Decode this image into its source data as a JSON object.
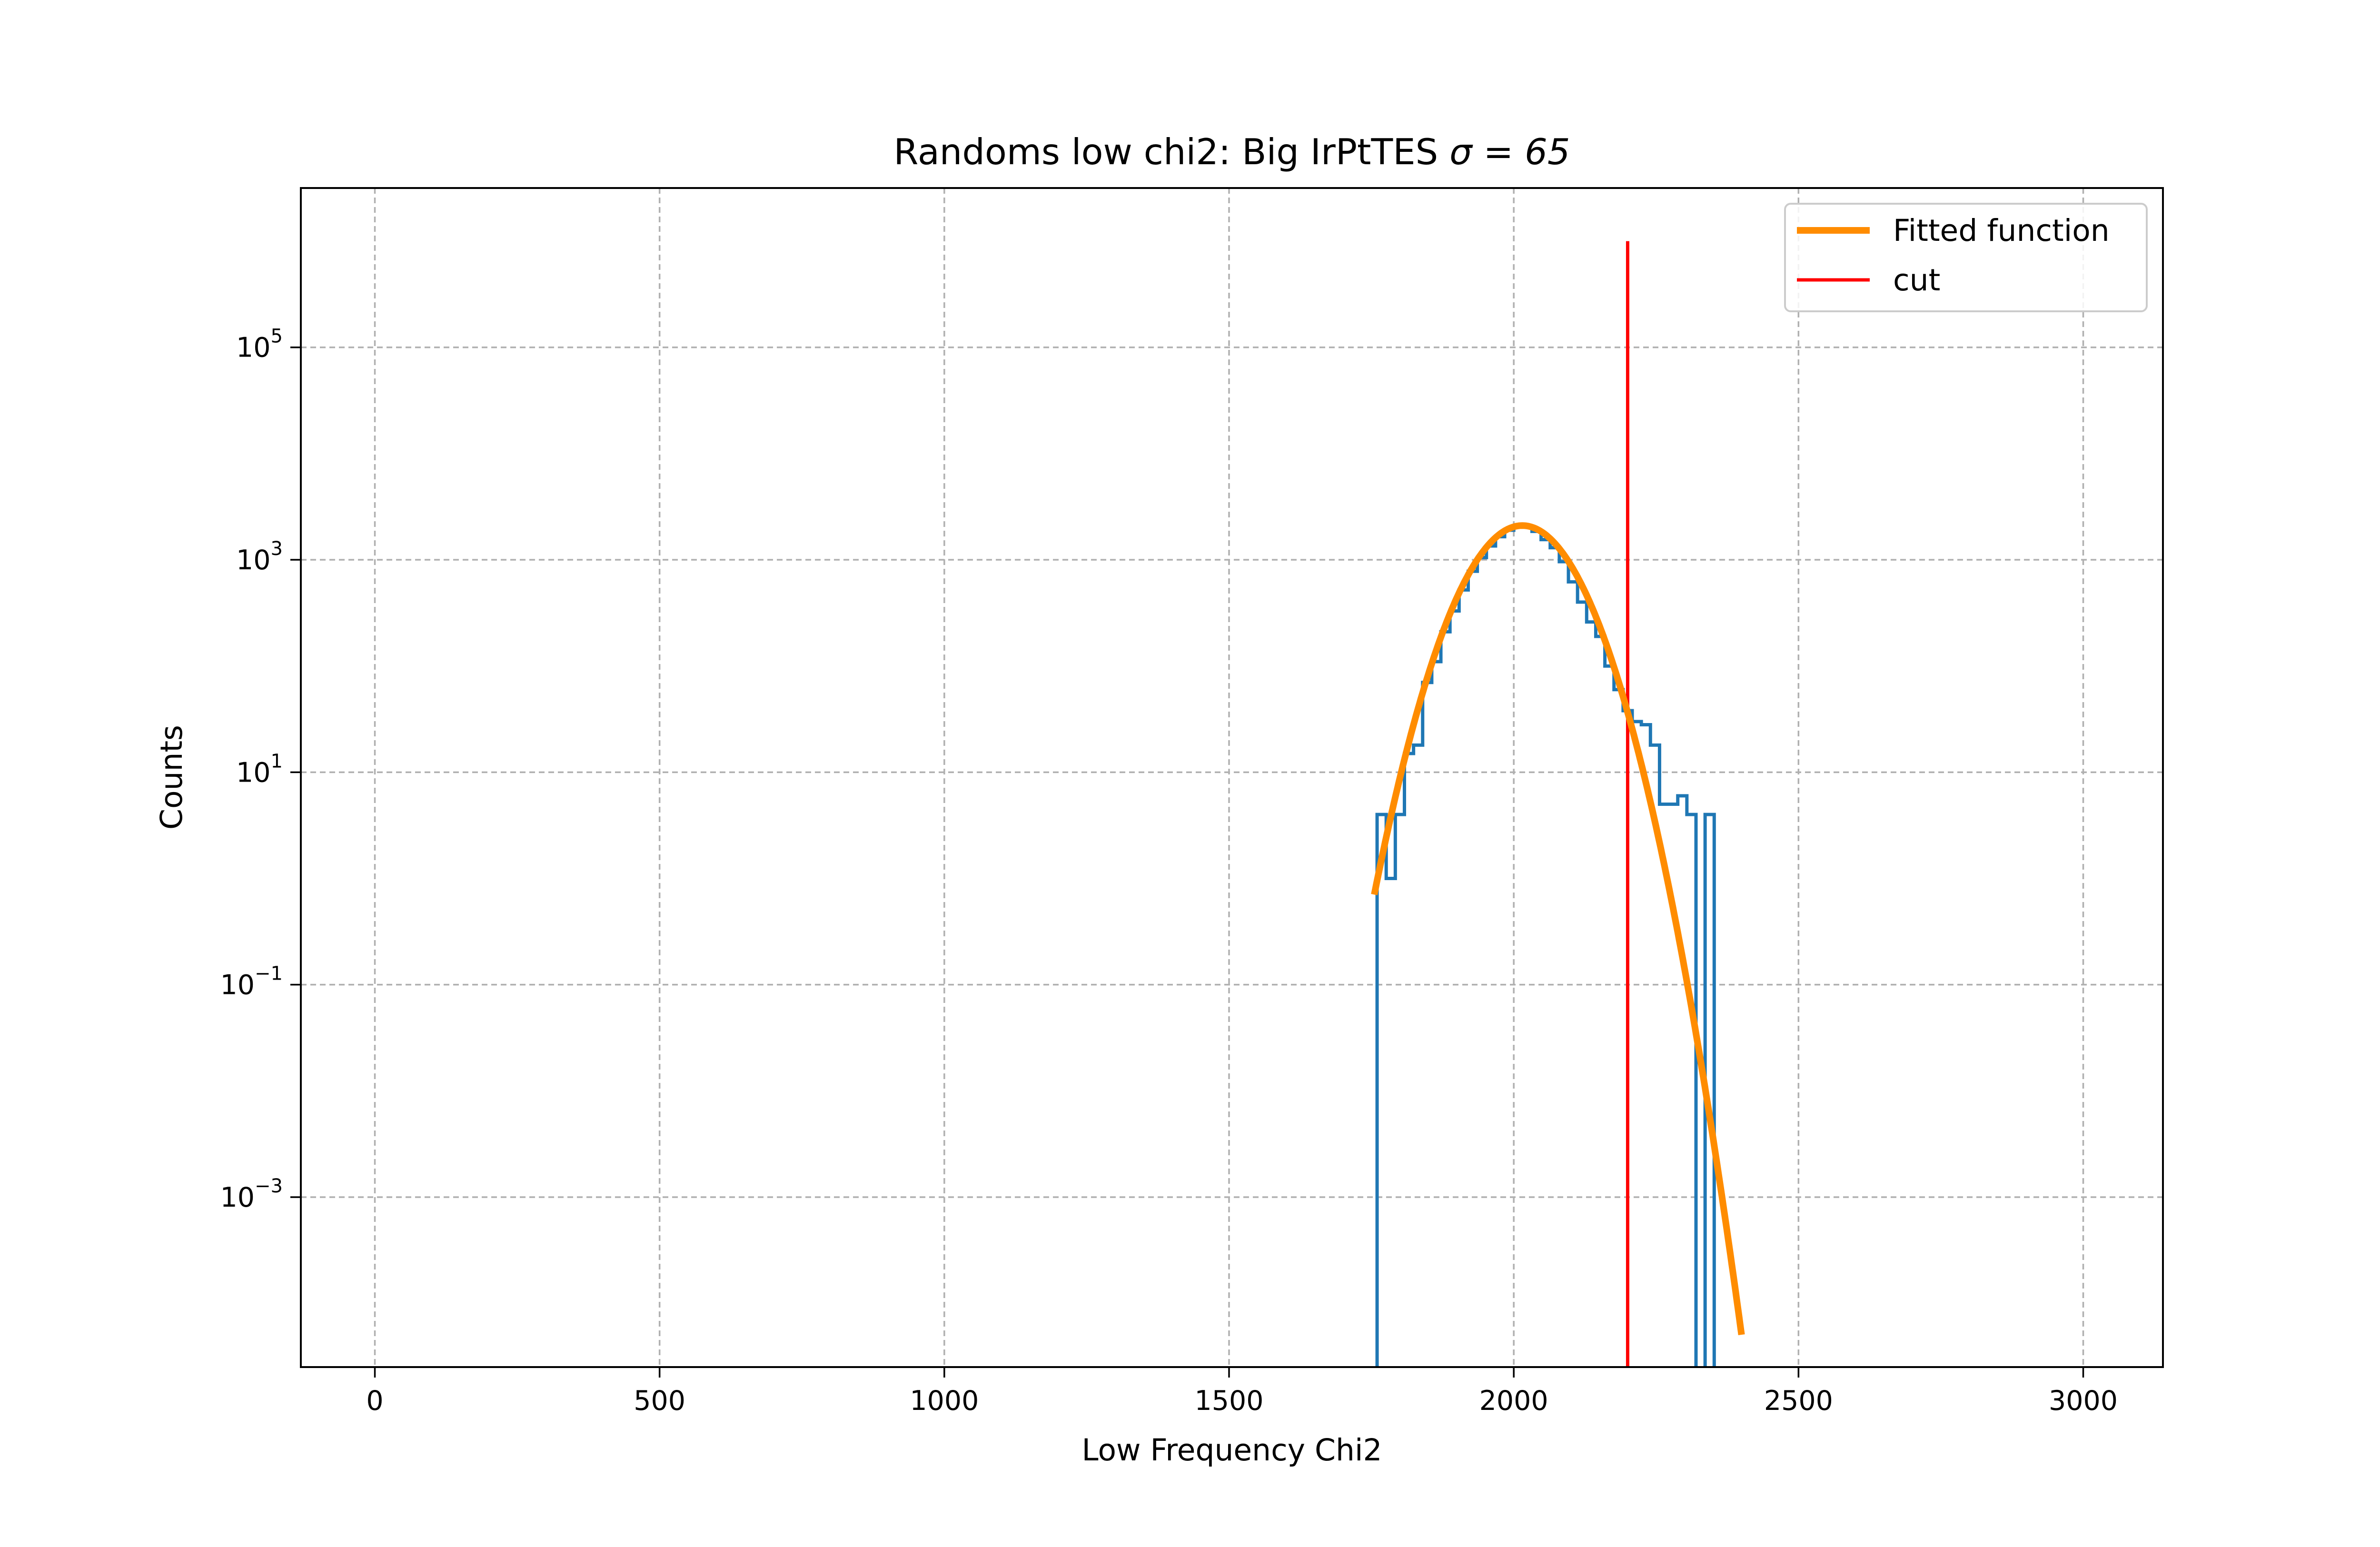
{
  "chart_data": {
    "type": "line",
    "title": "Randoms low chi2: Big IrPtTES",
    "title_math": "σ = 65",
    "xlabel": "Low Frequency Chi2",
    "ylabel": "Counts",
    "xlim": [
      -130,
      3140
    ],
    "ylim_log10": [
      -4.6,
      6.5
    ],
    "yscale": "log",
    "grid": true,
    "legend_position": "top-right",
    "x_ticks": [
      {
        "value": 0,
        "label": "0"
      },
      {
        "value": 500,
        "label": "500"
      },
      {
        "value": 1000,
        "label": "1000"
      },
      {
        "value": 1500,
        "label": "1500"
      },
      {
        "value": 2000,
        "label": "2000"
      },
      {
        "value": 2500,
        "label": "2500"
      },
      {
        "value": 3000,
        "label": "3000"
      }
    ],
    "y_ticks": [
      {
        "exp": 5,
        "base": "10",
        "sup": "5"
      },
      {
        "exp": 3,
        "base": "10",
        "sup": "3"
      },
      {
        "exp": 1,
        "base": "10",
        "sup": "1"
      },
      {
        "exp": -1,
        "base": "10",
        "sup": "−1"
      },
      {
        "exp": -3,
        "base": "10",
        "sup": "−3"
      }
    ],
    "series": [
      {
        "kind": "histogram",
        "color": "#1f77b4",
        "bin_width": 16,
        "bins": [
          [
            1760,
            4
          ],
          [
            1776,
            1
          ],
          [
            1792,
            4
          ],
          [
            1808,
            15
          ],
          [
            1824,
            18
          ],
          [
            1840,
            70
          ],
          [
            1856,
            110
          ],
          [
            1872,
            210
          ],
          [
            1888,
            330
          ],
          [
            1904,
            520
          ],
          [
            1920,
            780
          ],
          [
            1936,
            1050
          ],
          [
            1952,
            1350
          ],
          [
            1968,
            1650
          ],
          [
            1984,
            1900
          ],
          [
            2000,
            2050
          ],
          [
            2016,
            2050
          ],
          [
            2032,
            1850
          ],
          [
            2048,
            1550
          ],
          [
            2064,
            1300
          ],
          [
            2080,
            960
          ],
          [
            2096,
            620
          ],
          [
            2112,
            400
          ],
          [
            2128,
            260
          ],
          [
            2144,
            190
          ],
          [
            2160,
            100
          ],
          [
            2176,
            60
          ],
          [
            2192,
            38
          ],
          [
            2208,
            30
          ],
          [
            2224,
            28
          ],
          [
            2240,
            18
          ],
          [
            2256,
            5
          ],
          [
            2272,
            5
          ],
          [
            2288,
            6
          ],
          [
            2304,
            4
          ],
          [
            2320,
            0
          ],
          [
            2336,
            4
          ],
          [
            2352,
            0
          ]
        ]
      },
      {
        "name": "Fitted function",
        "kind": "gaussian",
        "color": "#ff8c00",
        "amplitude": 2100,
        "mean": 2015,
        "sigma": 65,
        "x_range": [
          1755,
          2400
        ]
      },
      {
        "name": "cut",
        "kind": "vline",
        "color": "#ff0000",
        "x": 2200,
        "y_range": [
          1e-05,
          1000000
        ]
      }
    ]
  }
}
